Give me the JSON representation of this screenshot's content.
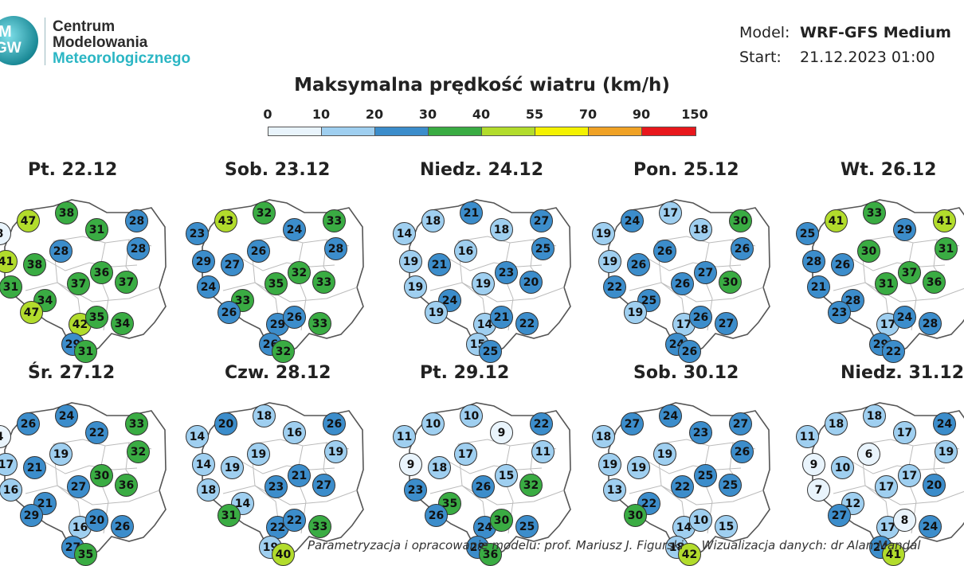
{
  "logo": {
    "mark_top": "M",
    "mark_bottom": "GW",
    "line1": "Centrum",
    "line2": "Modelowania",
    "line3": "Meteorologicznego"
  },
  "meta": {
    "model_label": "Model:",
    "model_value": "WRF-GFS Medium",
    "start_label": "Start:",
    "start_value": "21.12.2023 01:00"
  },
  "title": "Maksymalna prędkość wiatru (km/h)",
  "legend": {
    "ticks": [
      "0",
      "10",
      "20",
      "30",
      "40",
      "55",
      "70",
      "90",
      "150"
    ],
    "colors": [
      "#e9f4fc",
      "#9fcff0",
      "#3c8dcb",
      "#3aac43",
      "#b2dc2c",
      "#f4f200",
      "#f0a225",
      "#e8171c"
    ]
  },
  "days": [
    {
      "label": "Pt. 22.12",
      "values": [
        47,
        38,
        28,
        8,
        31,
        28,
        28,
        41,
        38,
        36,
        31,
        37,
        37,
        34,
        47,
        42,
        29,
        35,
        34,
        31
      ]
    },
    {
      "label": "Sob. 23.12",
      "values": [
        43,
        32,
        33,
        23,
        24,
        28,
        26,
        29,
        27,
        32,
        24,
        35,
        33,
        33,
        26,
        29,
        26,
        26,
        33,
        32
      ]
    },
    {
      "label": "Niedz. 24.12",
      "values": [
        18,
        21,
        27,
        14,
        18,
        25,
        16,
        19,
        21,
        23,
        19,
        19,
        20,
        24,
        19,
        14,
        15,
        21,
        22,
        25
      ]
    },
    {
      "label": "Pon. 25.12",
      "values": [
        24,
        17,
        30,
        19,
        18,
        26,
        26,
        19,
        26,
        27,
        22,
        26,
        30,
        25,
        19,
        17,
        24,
        26,
        27,
        26
      ]
    },
    {
      "label": "Wt. 26.12",
      "values": [
        41,
        33,
        41,
        25,
        29,
        31,
        30,
        28,
        26,
        37,
        21,
        31,
        36,
        28,
        23,
        17,
        29,
        24,
        28,
        22
      ]
    },
    {
      "label": "Śr. 27.12",
      "values": [
        26,
        24,
        33,
        4,
        22,
        32,
        19,
        17,
        21,
        30,
        16,
        27,
        36,
        21,
        29,
        16,
        27,
        20,
        26,
        35
      ]
    },
    {
      "label": "Czw. 28.12",
      "values": [
        20,
        18,
        26,
        14,
        16,
        19,
        19,
        14,
        19,
        21,
        18,
        23,
        27,
        14,
        31,
        22,
        19,
        22,
        33,
        40
      ]
    },
    {
      "label": "Pt. 29.12",
      "values": [
        10,
        10,
        22,
        11,
        9,
        11,
        17,
        9,
        18,
        15,
        23,
        26,
        32,
        35,
        26,
        24,
        29,
        30,
        25,
        36
      ]
    },
    {
      "label": "Sob. 30.12",
      "values": [
        27,
        24,
        27,
        18,
        23,
        26,
        19,
        19,
        19,
        25,
        13,
        22,
        25,
        22,
        30,
        14,
        18,
        10,
        15,
        42
      ]
    },
    {
      "label": "Niedz. 31.12",
      "values": [
        18,
        18,
        24,
        11,
        17,
        19,
        6,
        9,
        10,
        17,
        7,
        17,
        20,
        12,
        27,
        17,
        24,
        8,
        24,
        41
      ]
    }
  ],
  "footer": {
    "left": "Parametryzacja i opracowanie modelu: prof. Mariusz J. Figurski",
    "right": "Wizualizacja danych: dr Alan Mandal"
  }
}
